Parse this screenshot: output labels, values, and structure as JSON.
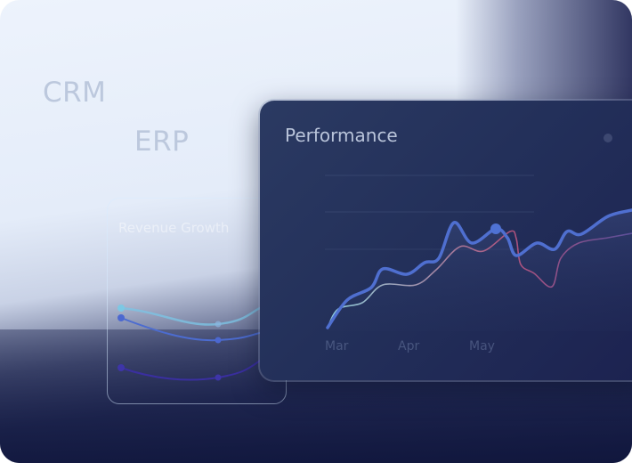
{
  "labels": {
    "crm": "CRM",
    "erp": "ERP"
  },
  "revenue_card": {
    "title": "Revenue Growth"
  },
  "performance_card": {
    "title": "Performance",
    "x_labels": [
      "Mar",
      "Apr",
      "May"
    ]
  },
  "colors": {
    "primary_line": "#4f6fd0",
    "secondary_line_start": "#7fc6d8",
    "secondary_line_end": "#b0527c",
    "navy": "#141b45"
  }
}
